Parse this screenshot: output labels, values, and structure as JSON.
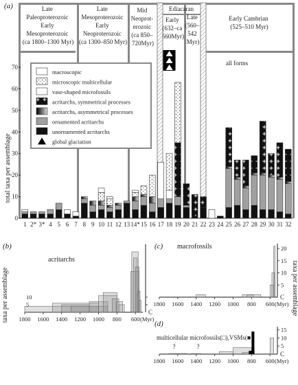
{
  "panels": {
    "a": {
      "letter": "(a)",
      "ylabel": "total taxa per assemblage",
      "legend_items": [
        {
          "label": "macroscopic",
          "style": "white"
        },
        {
          "label": "microscopic multicellular",
          "style": "dots"
        },
        {
          "label": "vase-shaped microfossils",
          "style": "white"
        },
        {
          "label": "acritarchs, symmetrical processes",
          "style": "plus"
        },
        {
          "label": "acritarchs, asymmetrical processes",
          "style": "gradient"
        },
        {
          "label": "ornamented acritarchs",
          "style": "grey"
        },
        {
          "label": "unornamented acritarchs",
          "style": "black"
        },
        {
          "label": "global glaciation",
          "style": "triangle"
        }
      ],
      "periods": [
        {
          "lines": [
            "Late",
            "Paleoproterozoic",
            "Early",
            "Mesoproterozoic",
            "(ca 1800–1300 Myr)"
          ]
        },
        {
          "lines": [
            "Late",
            "Mesoproterozoic",
            "Early",
            "Neoproterozoic",
            "(ca 1300–850 Myr)"
          ]
        },
        {
          "lines": [
            "Mid",
            "Neoprot-",
            "erozoic",
            "(ca 850–",
            "720Myr)"
          ]
        },
        {
          "lines": [
            "Ediacaran"
          ]
        },
        {
          "lines": [
            "Early",
            "(632–ca",
            "560Myr)"
          ]
        },
        {
          "lines": [
            "Late",
            "(560–",
            "542",
            "Myr)"
          ]
        },
        {
          "lines": [
            "Early Cambrian",
            "(525–510 Myr)"
          ]
        },
        {
          "lines": [
            "all forms"
          ]
        }
      ]
    },
    "b": {
      "letter": "(b)",
      "title": "acritarchs",
      "ylabel": "taxa per assemblage",
      "xunit": "(Myr)",
      "clabel": "C"
    },
    "c": {
      "letter": "(c)",
      "title": "macrofossils",
      "xunit": "(Myr)",
      "clabel": "C"
    },
    "d": {
      "letter": "(d)",
      "title": "multicellular microfossils(□),VSMs(■)",
      "xunit": "(Myr)",
      "clabel": "C",
      "question": "?"
    },
    "right_ylabel": "taxa per assemblage"
  },
  "chart_data": [
    {
      "panel": "a",
      "type": "bar",
      "ylabel": "total taxa per assemblage",
      "ylim": [
        0,
        70
      ],
      "yticks": [
        0,
        10,
        20,
        30,
        40,
        50,
        60,
        70
      ],
      "categories": [
        "1",
        "2*",
        "3*",
        "4",
        "5",
        "6",
        "7",
        "8",
        "9",
        "10",
        "11",
        "12",
        "13",
        "14*",
        "15",
        "16",
        "17",
        "18",
        "19",
        "20",
        "21",
        "22",
        "23",
        "24",
        "25",
        "26",
        "27",
        "28",
        "29",
        "30",
        "31",
        "32"
      ],
      "series": [
        {
          "name": "unornamented acritarchs",
          "values": [
            2,
            2,
            2,
            2,
            4,
            2,
            1,
            7,
            3,
            4,
            3,
            4,
            7,
            4,
            6,
            3,
            5,
            7,
            6,
            5,
            1,
            5,
            0,
            1,
            5,
            6,
            4,
            6,
            4,
            4,
            3,
            2
          ]
        },
        {
          "name": "ornamented acritarchs",
          "values": [
            1,
            1,
            1,
            2,
            3,
            0,
            0,
            2,
            3,
            2,
            2,
            2,
            1,
            4,
            4,
            4,
            4,
            2,
            4,
            1,
            0,
            0,
            0,
            0,
            18,
            12,
            10,
            14,
            16,
            15,
            15,
            14
          ]
        },
        {
          "name": "acritarchs, asymmetrical processes",
          "values": [
            0,
            0,
            0,
            0,
            0,
            0,
            0,
            1,
            2,
            2,
            1,
            1,
            0,
            2,
            1,
            3,
            0,
            0,
            0,
            0,
            0,
            0,
            0,
            0,
            1,
            1,
            1,
            1,
            1,
            1,
            1,
            1
          ]
        },
        {
          "name": "acritarchs, symmetrical processes",
          "values": [
            0,
            0,
            0,
            0,
            0,
            0,
            0,
            0,
            0,
            0,
            0,
            0,
            0,
            0,
            0,
            0,
            0,
            0,
            25,
            10,
            10,
            5,
            0,
            0,
            18,
            8,
            12,
            8,
            24,
            10,
            16,
            15
          ]
        },
        {
          "name": "vase-shaped microfossils",
          "values": [
            0,
            0,
            0,
            0,
            0,
            0,
            0,
            0,
            0,
            0,
            0,
            0,
            0,
            0,
            0,
            0,
            17,
            4,
            0,
            0,
            0,
            0,
            0,
            0,
            0,
            0,
            0,
            0,
            0,
            0,
            0,
            0
          ]
        },
        {
          "name": "microscopic multicellular",
          "values": [
            0,
            0,
            0,
            0,
            0,
            0,
            0,
            0,
            0,
            4,
            3,
            0,
            0,
            2,
            4,
            10,
            0,
            17,
            28,
            0,
            0,
            0,
            0,
            0,
            0,
            0,
            0,
            0,
            0,
            0,
            0,
            0
          ]
        },
        {
          "name": "macroscopic",
          "values": [
            1,
            0,
            0,
            0,
            0,
            2,
            2,
            0,
            0,
            2,
            1,
            0,
            0,
            1,
            0,
            0,
            0,
            0,
            0,
            0,
            0,
            0,
            4,
            0,
            0,
            0,
            0,
            0,
            0,
            0,
            0,
            0
          ]
        }
      ]
    },
    {
      "panel": "b",
      "type": "bar",
      "title": "acritarchs",
      "ylabel": "taxa per assemblage",
      "xlim": [
        1800,
        520
      ],
      "xticks": [
        1800,
        1600,
        1400,
        1200,
        1000,
        800,
        600
      ],
      "yticks": [
        5,
        10
      ],
      "ylim": [
        0,
        45
      ],
      "intervals": [
        {
          "start": 1800,
          "end": 900,
          "value": 4
        },
        {
          "start": 1500,
          "end": 1000,
          "value": 6
        },
        {
          "start": 1400,
          "end": 1100,
          "value": 5
        },
        {
          "start": 1300,
          "end": 1000,
          "value": 4
        },
        {
          "start": 1100,
          "end": 900,
          "value": 7
        },
        {
          "start": 1000,
          "end": 800,
          "value": 11
        },
        {
          "start": 950,
          "end": 800,
          "value": 13
        },
        {
          "start": 850,
          "end": 780,
          "value": 9
        },
        {
          "start": 810,
          "end": 740,
          "value": 7
        },
        {
          "start": 780,
          "end": 720,
          "value": 5
        },
        {
          "start": 650,
          "end": 560,
          "value": 27
        },
        {
          "start": 640,
          "end": 570,
          "value": 40
        },
        {
          "start": 620,
          "end": 580,
          "value": 36
        },
        {
          "start": 600,
          "end": 560,
          "value": 30
        },
        {
          "start": 580,
          "end": 550,
          "value": 14
        },
        {
          "start": 560,
          "end": 540,
          "value": 8
        }
      ]
    },
    {
      "panel": "c",
      "type": "bar",
      "title": "macrofossils",
      "xlim": [
        1800,
        520
      ],
      "xticks": [
        1800,
        1600,
        1400,
        1200,
        1000,
        800,
        600
      ],
      "yticks": [
        5,
        10,
        15,
        20
      ],
      "ylim": [
        0,
        22
      ],
      "intervals": [
        {
          "start": 1400,
          "end": 1300,
          "value": 1
        },
        {
          "start": 900,
          "end": 700,
          "value": 1
        },
        {
          "start": 850,
          "end": 780,
          "value": 1
        },
        {
          "start": 600,
          "end": 560,
          "value": 5
        },
        {
          "start": 580,
          "end": 550,
          "value": 10
        },
        {
          "start": 560,
          "end": 545,
          "value": 21
        }
      ]
    },
    {
      "panel": "d",
      "type": "bar",
      "title": "multicellular microfossils(□),VSMs(■)",
      "xlim": [
        1800,
        520
      ],
      "xticks": [
        1800,
        1600,
        1400,
        1200,
        1000,
        800,
        600
      ],
      "yticks": [
        5,
        10,
        15
      ],
      "ylim": [
        0,
        17
      ],
      "intervals": [
        {
          "start": 1700,
          "end": 1500,
          "value": 0.4
        },
        {
          "start": 1450,
          "end": 1350,
          "value": 0.4
        },
        {
          "start": 1150,
          "end": 1000,
          "value": 1.5
        },
        {
          "start": 1000,
          "end": 800,
          "value": 4
        },
        {
          "start": 900,
          "end": 800,
          "value": 1
        },
        {
          "start": 800,
          "end": 770,
          "value": 3
        },
        {
          "start": 600,
          "end": 560,
          "value": 10
        }
      ],
      "vsm": [
        {
          "start": 800,
          "end": 770,
          "value": 14
        },
        {
          "start": 830,
          "end": 790,
          "value": 2
        }
      ]
    }
  ]
}
